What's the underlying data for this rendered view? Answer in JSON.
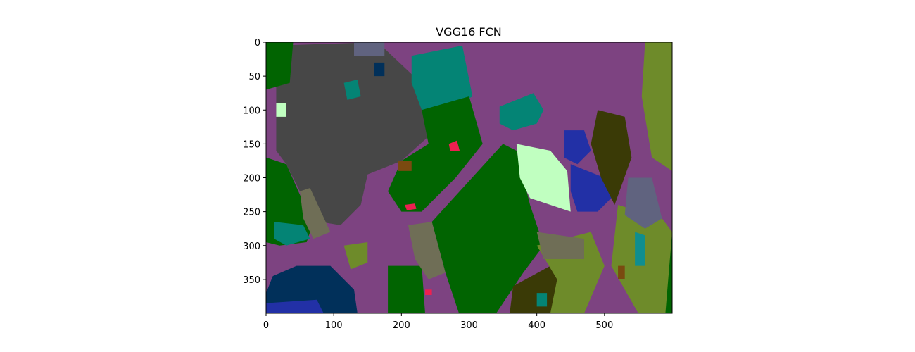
{
  "chart_data": {
    "type": "heatmap",
    "title": "VGG16 FCN",
    "xlabel": "",
    "ylabel": "",
    "xlim": [
      0,
      600
    ],
    "ylim": [
      400,
      0
    ],
    "x_ticks": [
      0,
      100,
      200,
      300,
      400,
      500
    ],
    "y_ticks": [
      0,
      50,
      100,
      150,
      200,
      250,
      300,
      350
    ],
    "grid": false,
    "legend": "none",
    "image_width": 600,
    "image_height": 400,
    "palette": {
      "purple": "#7d4381",
      "green": "#016401",
      "gray": "#474747",
      "teal": "#048475",
      "olive": "#6e8b2a",
      "dark-olive": "#3a3a06",
      "blue": "#2230a6",
      "navy": "#01305a",
      "mint": "#c0ffc0",
      "taupe": "#6f6e56",
      "slate": "#60637f",
      "red": "#ee2050",
      "brown": "#7a4a10",
      "cyan": "#0f8e8f"
    },
    "regions": [
      {
        "class": "gray",
        "polygon": [
          [
            15,
            5
          ],
          [
            165,
            0
          ],
          [
            250,
            80
          ],
          [
            250,
            130
          ],
          [
            200,
            175
          ],
          [
            150,
            195
          ],
          [
            140,
            240
          ],
          [
            110,
            270
          ],
          [
            80,
            265
          ],
          [
            50,
            220
          ],
          [
            30,
            180
          ],
          [
            15,
            160
          ],
          [
            15,
            100
          ]
        ]
      },
      {
        "class": "teal",
        "polygon": [
          [
            215,
            20
          ],
          [
            290,
            5
          ],
          [
            305,
            80
          ],
          [
            260,
            105
          ],
          [
            230,
            100
          ],
          [
            215,
            60
          ]
        ]
      },
      {
        "class": "teal",
        "polygon": [
          [
            345,
            95
          ],
          [
            395,
            75
          ],
          [
            410,
            100
          ],
          [
            400,
            120
          ],
          [
            365,
            130
          ],
          [
            345,
            120
          ]
        ]
      },
      {
        "class": "green",
        "polygon": [
          [
            0,
            0
          ],
          [
            40,
            0
          ],
          [
            35,
            60
          ],
          [
            0,
            70
          ]
        ]
      },
      {
        "class": "green",
        "polygon": [
          [
            0,
            170
          ],
          [
            30,
            180
          ],
          [
            50,
            225
          ],
          [
            70,
            265
          ],
          [
            60,
            295
          ],
          [
            20,
            300
          ],
          [
            0,
            295
          ]
        ]
      },
      {
        "class": "green",
        "polygon": [
          [
            230,
            100
          ],
          [
            300,
            80
          ],
          [
            320,
            150
          ],
          [
            280,
            200
          ],
          [
            230,
            250
          ],
          [
            200,
            250
          ],
          [
            180,
            220
          ],
          [
            200,
            175
          ],
          [
            240,
            150
          ]
        ]
      },
      {
        "class": "green",
        "polygon": [
          [
            245,
            265
          ],
          [
            350,
            150
          ],
          [
            370,
            160
          ],
          [
            390,
            240
          ],
          [
            410,
            300
          ],
          [
            380,
            340
          ],
          [
            340,
            400
          ],
          [
            285,
            400
          ],
          [
            265,
            340
          ]
        ]
      },
      {
        "class": "green",
        "polygon": [
          [
            180,
            330
          ],
          [
            230,
            330
          ],
          [
            235,
            400
          ],
          [
            180,
            400
          ]
        ]
      },
      {
        "class": "green",
        "polygon": [
          [
            590,
            280
          ],
          [
            600,
            280
          ],
          [
            600,
            400
          ],
          [
            590,
            400
          ]
        ]
      },
      {
        "class": "taupe",
        "polygon": [
          [
            50,
            220
          ],
          [
            65,
            215
          ],
          [
            95,
            280
          ],
          [
            70,
            290
          ],
          [
            55,
            260
          ]
        ]
      },
      {
        "class": "taupe",
        "polygon": [
          [
            210,
            270
          ],
          [
            245,
            265
          ],
          [
            265,
            340
          ],
          [
            240,
            350
          ],
          [
            220,
            320
          ]
        ]
      },
      {
        "class": "mint",
        "polygon": [
          [
            370,
            150
          ],
          [
            420,
            160
          ],
          [
            445,
            190
          ],
          [
            450,
            250
          ],
          [
            420,
            240
          ],
          [
            390,
            230
          ],
          [
            375,
            200
          ]
        ]
      },
      {
        "class": "blue",
        "polygon": [
          [
            440,
            130
          ],
          [
            470,
            130
          ],
          [
            480,
            160
          ],
          [
            460,
            180
          ],
          [
            440,
            170
          ]
        ]
      },
      {
        "class": "blue",
        "polygon": [
          [
            450,
            180
          ],
          [
            500,
            200
          ],
          [
            510,
            230
          ],
          [
            490,
            250
          ],
          [
            460,
            250
          ],
          [
            450,
            220
          ]
        ]
      },
      {
        "class": "dark-olive",
        "polygon": [
          [
            490,
            100
          ],
          [
            530,
            110
          ],
          [
            540,
            170
          ],
          [
            515,
            240
          ],
          [
            495,
            200
          ],
          [
            480,
            150
          ]
        ]
      },
      {
        "class": "dark-olive",
        "polygon": [
          [
            365,
            360
          ],
          [
            420,
            330
          ],
          [
            440,
            360
          ],
          [
            440,
            400
          ],
          [
            360,
            400
          ]
        ]
      },
      {
        "class": "olive",
        "polygon": [
          [
            560,
            0
          ],
          [
            600,
            0
          ],
          [
            600,
            190
          ],
          [
            570,
            170
          ],
          [
            555,
            80
          ]
        ]
      },
      {
        "class": "olive",
        "polygon": [
          [
            520,
            240
          ],
          [
            585,
            260
          ],
          [
            600,
            280
          ],
          [
            590,
            400
          ],
          [
            550,
            400
          ],
          [
            510,
            330
          ]
        ]
      },
      {
        "class": "olive",
        "polygon": [
          [
            400,
            300
          ],
          [
            480,
            280
          ],
          [
            500,
            330
          ],
          [
            470,
            400
          ],
          [
            420,
            400
          ],
          [
            430,
            350
          ]
        ]
      },
      {
        "class": "olive",
        "polygon": [
          [
            115,
            300
          ],
          [
            150,
            295
          ],
          [
            150,
            325
          ],
          [
            125,
            335
          ]
        ]
      },
      {
        "class": "navy",
        "polygon": [
          [
            10,
            345
          ],
          [
            45,
            330
          ],
          [
            95,
            330
          ],
          [
            130,
            365
          ],
          [
            135,
            400
          ],
          [
            0,
            400
          ],
          [
            0,
            370
          ]
        ]
      },
      {
        "class": "blue",
        "polygon": [
          [
            0,
            385
          ],
          [
            75,
            380
          ],
          [
            85,
            400
          ],
          [
            0,
            400
          ]
        ]
      },
      {
        "class": "teal",
        "polygon": [
          [
            12,
            265
          ],
          [
            55,
            270
          ],
          [
            65,
            290
          ],
          [
            30,
            300
          ],
          [
            12,
            290
          ]
        ]
      },
      {
        "class": "slate",
        "polygon": [
          [
            535,
            200
          ],
          [
            570,
            200
          ],
          [
            585,
            260
          ],
          [
            560,
            275
          ],
          [
            530,
            255
          ]
        ]
      },
      {
        "class": "cyan",
        "polygon": [
          [
            545,
            280
          ],
          [
            560,
            285
          ],
          [
            560,
            330
          ],
          [
            545,
            330
          ]
        ]
      },
      {
        "class": "red",
        "polygon": [
          [
            270,
            150
          ],
          [
            282,
            145
          ],
          [
            286,
            160
          ],
          [
            272,
            160
          ]
        ]
      },
      {
        "class": "red",
        "polygon": [
          [
            205,
            240
          ],
          [
            220,
            238
          ],
          [
            222,
            246
          ],
          [
            208,
            248
          ]
        ]
      },
      {
        "class": "red",
        "polygon": [
          [
            235,
            365
          ],
          [
            245,
            365
          ],
          [
            245,
            373
          ],
          [
            235,
            373
          ]
        ]
      },
      {
        "class": "mint",
        "polygon": [
          [
            15,
            90
          ],
          [
            30,
            90
          ],
          [
            30,
            110
          ],
          [
            15,
            110
          ]
        ]
      },
      {
        "class": "brown",
        "polygon": [
          [
            195,
            175
          ],
          [
            215,
            175
          ],
          [
            215,
            190
          ],
          [
            195,
            190
          ]
        ]
      },
      {
        "class": "brown",
        "polygon": [
          [
            520,
            330
          ],
          [
            530,
            330
          ],
          [
            530,
            350
          ],
          [
            520,
            350
          ]
        ]
      },
      {
        "class": "navy",
        "polygon": [
          [
            160,
            30
          ],
          [
            175,
            30
          ],
          [
            175,
            50
          ],
          [
            160,
            50
          ]
        ]
      },
      {
        "class": "teal",
        "polygon": [
          [
            115,
            60
          ],
          [
            135,
            55
          ],
          [
            140,
            80
          ],
          [
            120,
            85
          ]
        ]
      },
      {
        "class": "taupe",
        "polygon": [
          [
            400,
            280
          ],
          [
            470,
            290
          ],
          [
            470,
            320
          ],
          [
            410,
            320
          ]
        ]
      },
      {
        "class": "slate",
        "polygon": [
          [
            130,
            0
          ],
          [
            175,
            0
          ],
          [
            175,
            20
          ],
          [
            130,
            20
          ]
        ]
      },
      {
        "class": "teal",
        "polygon": [
          [
            400,
            370
          ],
          [
            415,
            370
          ],
          [
            415,
            390
          ],
          [
            400,
            390
          ]
        ]
      }
    ]
  }
}
